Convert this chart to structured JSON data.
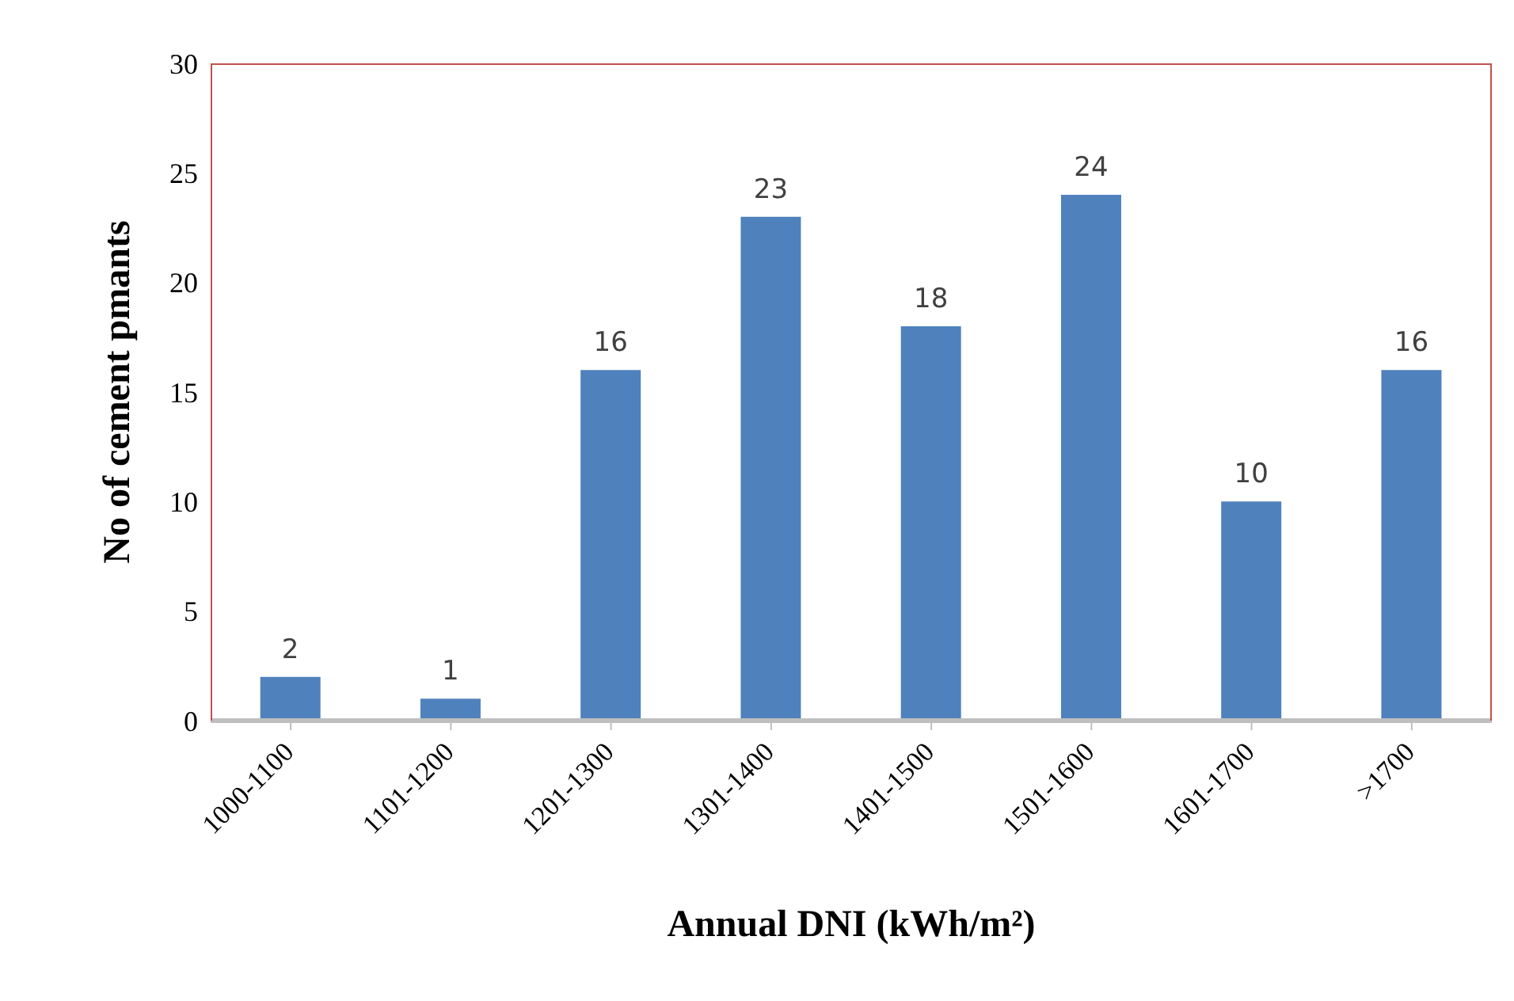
{
  "chart_data": {
    "type": "bar",
    "xlabel": "Annual DNI (kWh/m²)",
    "ylabel": "No of cement pmants",
    "categories": [
      "1000-1100",
      "1101-1200",
      "1201-1300",
      "1301-1400",
      "1401-1500",
      "1501-1600",
      "1601-1700",
      ">1700"
    ],
    "values": [
      2,
      1,
      16,
      23,
      18,
      24,
      10,
      16
    ],
    "color": "#4f81bd",
    "ylim": [
      0,
      30
    ],
    "yticks": [
      0,
      5,
      10,
      15,
      20,
      25,
      30
    ],
    "data_labels": true,
    "grid": false
  }
}
